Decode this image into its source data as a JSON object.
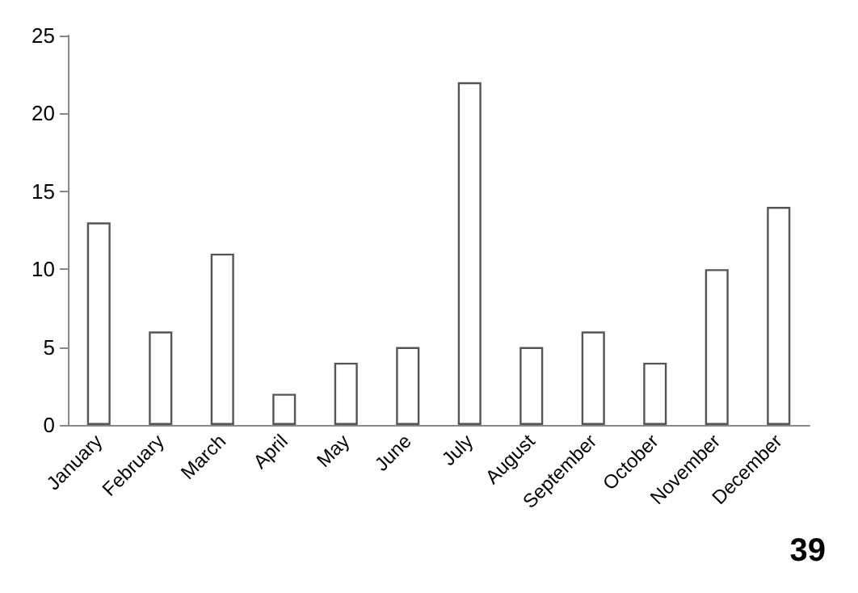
{
  "chart_data": {
    "type": "bar",
    "categories": [
      "January",
      "February",
      "March",
      "April",
      "May",
      "June",
      "July",
      "August",
      "September",
      "October",
      "November",
      "December"
    ],
    "values": [
      13,
      6,
      11,
      2,
      4,
      5,
      22,
      5,
      6,
      4,
      10,
      14
    ],
    "color": "#ffffff",
    "ylim": [
      0,
      25
    ],
    "yticks": [
      0,
      5,
      10,
      15,
      20,
      25
    ],
    "grid": false,
    "annotations": [
      "39"
    ]
  }
}
